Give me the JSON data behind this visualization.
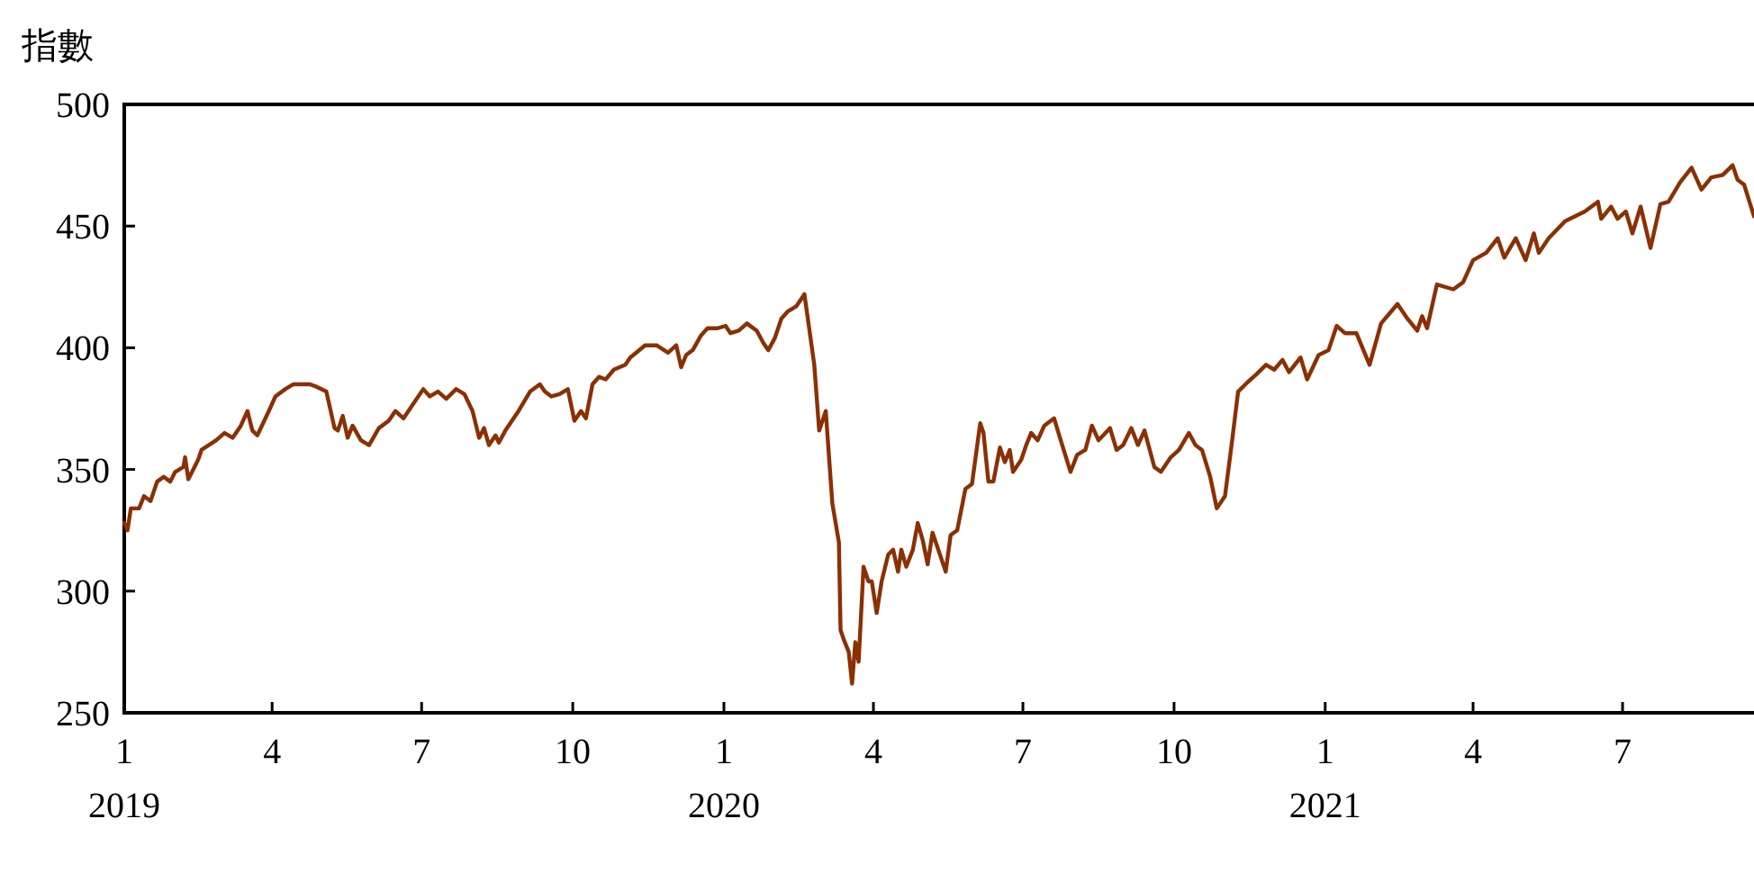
{
  "chart_data": {
    "type": "line",
    "ylabel": "指數",
    "xlim": [
      "2019-01-01",
      "2021-09-19"
    ],
    "ylim": [
      250,
      500
    ],
    "yticks": [
      250,
      300,
      350,
      400,
      450,
      500
    ],
    "xticks": [
      {
        "value": "2019-01-01",
        "label": "1\n2019"
      },
      {
        "value": "2019-04-01",
        "label": "4"
      },
      {
        "value": "2019-07-01",
        "label": "7"
      },
      {
        "value": "2019-10-01",
        "label": "10"
      },
      {
        "value": "2020-01-01",
        "label": "1\n2020"
      },
      {
        "value": "2020-04-01",
        "label": "4"
      },
      {
        "value": "2020-07-01",
        "label": "7"
      },
      {
        "value": "2020-10-01",
        "label": "10"
      },
      {
        "value": "2021-01-01",
        "label": "1\n2021"
      },
      {
        "value": "2021-04-01",
        "label": "4"
      },
      {
        "value": "2021-07-01",
        "label": "7"
      }
    ],
    "grid": false,
    "marker": "none",
    "line_style": "solid",
    "series": [
      {
        "color": "#8b3003",
        "x": [
          "2019-01-01",
          "2019-01-03",
          "2019-01-05",
          "2019-01-10",
          "2019-01-13",
          "2019-01-17",
          "2019-01-21",
          "2019-01-25",
          "2019-01-29",
          "2019-02-01",
          "2019-02-06",
          "2019-02-07",
          "2019-02-09",
          "2019-02-15",
          "2019-02-17",
          "2019-02-26",
          "2019-03-03",
          "2019-03-08",
          "2019-03-13",
          "2019-03-17",
          "2019-03-20",
          "2019-03-23",
          "2019-03-30",
          "2019-04-03",
          "2019-04-09",
          "2019-04-14",
          "2019-04-24",
          "2019-04-28",
          "2019-05-04",
          "2019-05-09",
          "2019-05-11",
          "2019-05-14",
          "2019-05-17",
          "2019-05-20",
          "2019-05-25",
          "2019-05-30",
          "2019-06-05",
          "2019-06-11",
          "2019-06-15",
          "2019-06-20",
          "2019-06-26",
          "2019-07-02",
          "2019-07-06",
          "2019-07-11",
          "2019-07-16",
          "2019-07-22",
          "2019-07-27",
          "2019-08-01",
          "2019-08-05",
          "2019-08-08",
          "2019-08-11",
          "2019-08-15",
          "2019-08-17",
          "2019-08-21",
          "2019-08-26",
          "2019-08-29",
          "2019-09-05",
          "2019-09-11",
          "2019-09-14",
          "2019-09-18",
          "2019-09-23",
          "2019-09-28",
          "2019-10-02",
          "2019-10-06",
          "2019-10-09",
          "2019-10-13",
          "2019-10-17",
          "2019-10-21",
          "2019-10-26",
          "2019-11-02",
          "2019-11-05",
          "2019-11-14",
          "2019-11-21",
          "2019-11-28",
          "2019-12-03",
          "2019-12-06",
          "2019-12-09",
          "2019-12-13",
          "2019-12-18",
          "2019-12-22",
          "2019-12-28",
          "2020-01-02",
          "2020-01-05",
          "2020-01-10",
          "2020-01-15",
          "2020-01-21",
          "2020-01-25",
          "2020-01-28",
          "2020-02-01",
          "2020-02-05",
          "2020-02-09",
          "2020-02-14",
          "2020-02-19",
          "2020-02-25",
          "2020-02-28",
          "2020-03-03",
          "2020-03-07",
          "2020-03-11",
          "2020-03-12",
          "2020-03-14",
          "2020-03-17",
          "2020-03-19",
          "2020-03-21",
          "2020-03-23",
          "2020-03-26",
          "2020-03-29",
          "2020-03-31",
          "2020-04-03",
          "2020-04-06",
          "2020-04-10",
          "2020-04-13",
          "2020-04-16",
          "2020-04-18",
          "2020-04-21",
          "2020-04-25",
          "2020-04-28",
          "2020-05-01",
          "2020-05-04",
          "2020-05-07",
          "2020-05-15",
          "2020-05-18",
          "2020-05-22",
          "2020-05-27",
          "2020-05-31",
          "2020-06-05",
          "2020-06-07",
          "2020-06-10",
          "2020-06-13",
          "2020-06-17",
          "2020-06-20",
          "2020-06-23",
          "2020-06-25",
          "2020-06-30",
          "2020-07-03",
          "2020-07-06",
          "2020-07-10",
          "2020-07-14",
          "2020-07-20",
          "2020-07-24",
          "2020-07-30",
          "2020-08-03",
          "2020-08-08",
          "2020-08-12",
          "2020-08-16",
          "2020-08-23",
          "2020-08-27",
          "2020-08-31",
          "2020-09-05",
          "2020-09-09",
          "2020-09-13",
          "2020-09-19",
          "2020-09-23",
          "2020-09-29",
          "2020-10-04",
          "2020-10-10",
          "2020-10-14",
          "2020-10-18",
          "2020-10-23",
          "2020-10-27",
          "2020-11-01",
          "2020-11-05",
          "2020-11-09",
          "2020-11-15",
          "2020-11-20",
          "2020-11-26",
          "2020-12-01",
          "2020-12-06",
          "2020-12-10",
          "2020-12-17",
          "2020-12-21",
          "2020-12-28",
          "2021-01-03",
          "2021-01-08",
          "2021-01-13",
          "2021-01-20",
          "2021-01-28",
          "2021-02-04",
          "2021-02-14",
          "2021-02-20",
          "2021-02-26",
          "2021-03-01",
          "2021-03-04",
          "2021-03-10",
          "2021-03-20",
          "2021-03-26",
          "2021-04-01",
          "2021-04-09",
          "2021-04-16",
          "2021-04-20",
          "2021-04-27",
          "2021-05-03",
          "2021-05-08",
          "2021-05-11",
          "2021-05-17",
          "2021-05-27",
          "2021-06-08",
          "2021-06-16",
          "2021-06-18",
          "2021-06-24",
          "2021-06-28",
          "2021-07-03",
          "2021-07-07",
          "2021-07-12",
          "2021-07-18",
          "2021-07-24",
          "2021-07-29",
          "2021-08-05",
          "2021-08-12",
          "2021-08-18",
          "2021-08-24",
          "2021-08-31",
          "2021-09-06",
          "2021-09-09",
          "2021-09-13",
          "2021-09-19"
        ],
        "values": [
          328,
          325,
          334,
          334,
          339,
          337,
          345,
          347,
          345,
          349,
          351,
          355,
          346,
          354,
          358,
          362,
          365,
          363,
          368,
          374,
          366,
          364,
          374,
          380,
          383,
          385,
          385,
          384,
          382,
          367,
          366,
          372,
          363,
          368,
          362,
          360,
          367,
          370,
          374,
          371,
          377,
          383,
          380,
          382,
          379,
          383,
          381,
          374,
          363,
          367,
          360,
          364,
          361,
          366,
          371,
          374,
          382,
          385,
          382,
          380,
          381,
          383,
          370,
          374,
          371,
          385,
          388,
          387,
          391,
          393,
          396,
          401,
          401,
          398,
          401,
          392,
          397,
          399,
          405,
          408,
          408,
          409,
          406,
          407,
          410,
          407,
          402,
          399,
          404,
          412,
          415,
          417,
          422,
          393,
          366,
          374,
          336,
          320,
          284,
          280,
          275,
          262,
          279,
          271,
          310,
          304,
          304,
          291,
          304,
          315,
          317,
          308,
          317,
          310,
          317,
          328,
          321,
          311,
          324,
          308,
          323,
          325,
          342,
          344,
          369,
          365,
          345,
          345,
          359,
          353,
          358,
          349,
          354,
          360,
          365,
          362,
          368,
          371,
          362,
          349,
          356,
          358,
          368,
          362,
          367,
          358,
          360,
          367,
          360,
          366,
          351,
          349,
          355,
          358,
          365,
          360,
          358,
          347,
          334,
          339,
          360,
          382,
          386,
          389,
          393,
          391,
          395,
          390,
          396,
          387,
          397,
          399,
          409,
          406,
          406,
          393,
          410,
          418,
          412,
          407,
          413,
          408,
          426,
          424,
          427,
          436,
          439,
          445,
          437,
          445,
          436,
          447,
          439,
          445,
          452,
          456,
          460,
          453,
          458,
          453,
          456,
          447,
          458,
          441,
          459,
          460,
          468,
          474,
          465,
          470,
          471,
          475,
          469,
          467,
          454
        ]
      }
    ]
  }
}
